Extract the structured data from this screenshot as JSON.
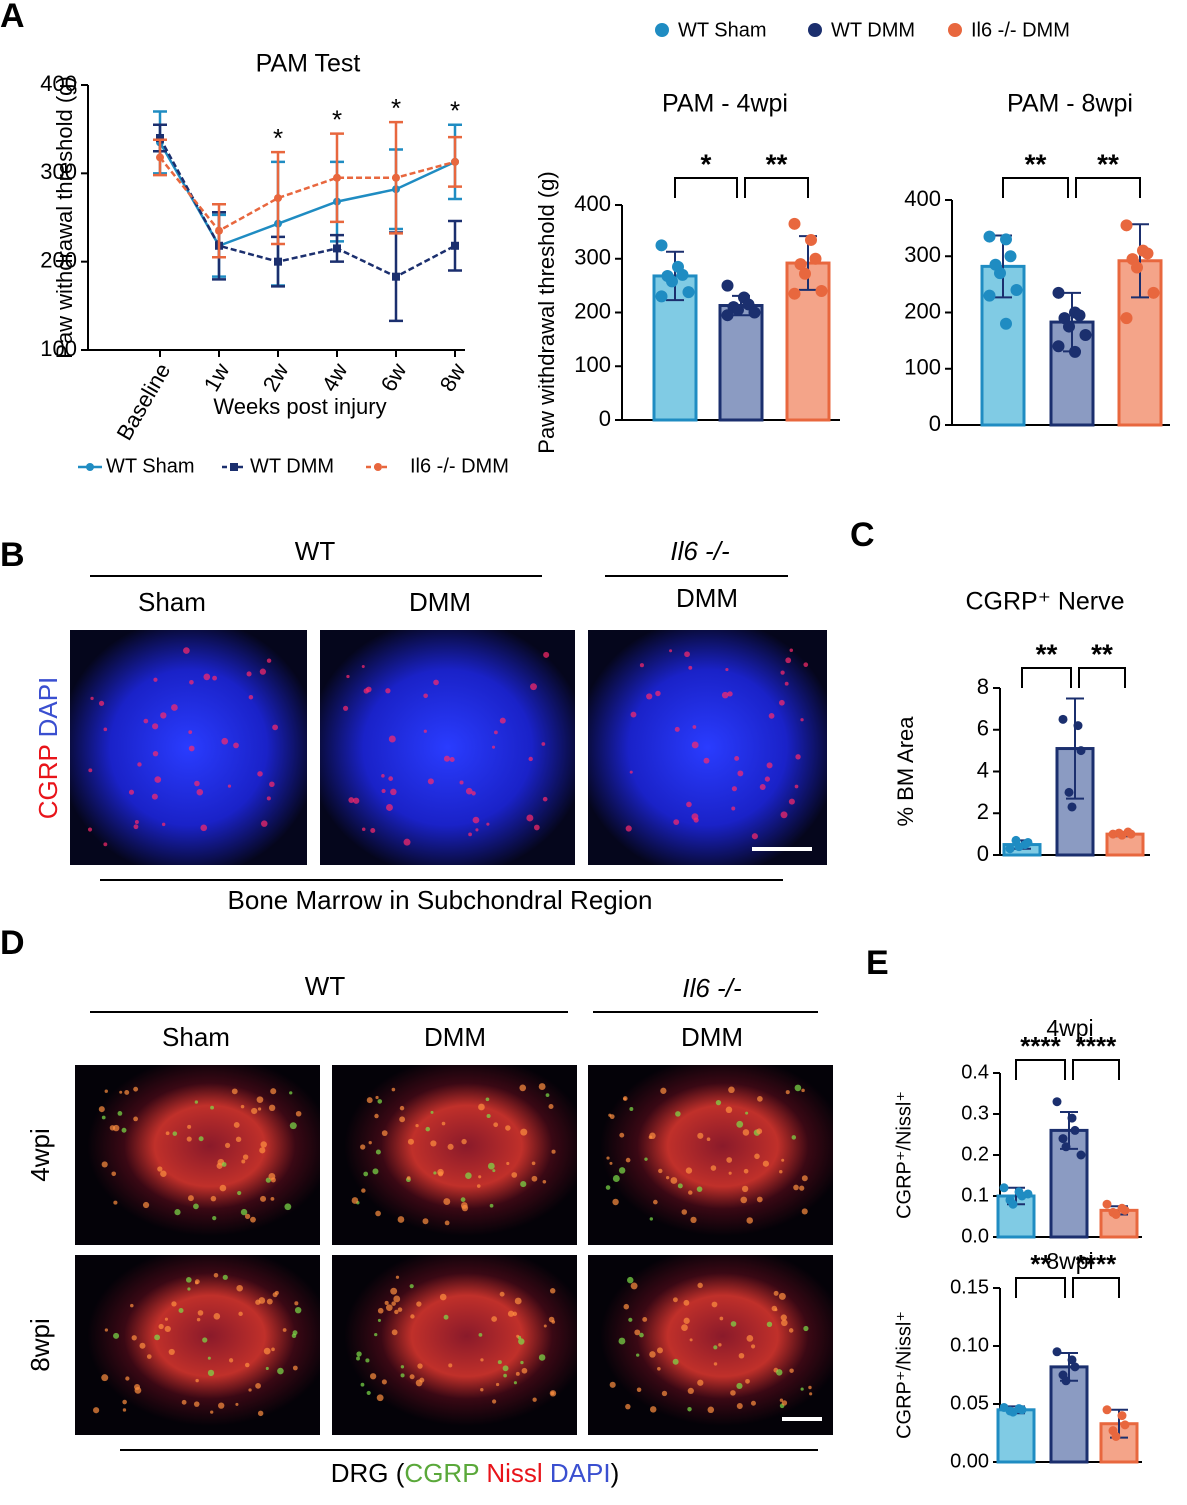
{
  "panels": {
    "A": "A",
    "B": "B",
    "C": "C",
    "D": "D",
    "E": "E",
    "b_wt": "WT",
    "b_ko": "Il6 -/-",
    "b_sham": "Sham",
    "b_dmm": "DMM",
    "b_dmm2": "DMM",
    "b_stain_cgrp": "CGRP",
    "b_stain_dapi": "DAPI",
    "b_caption": "Bone Marrow in Subchondral Region",
    "d_wt": "WT",
    "d_ko": "Il6 -/-",
    "d_sham": "Sham",
    "d_dmm": "DMM",
    "d_dmm2": "DMM",
    "d_row1": "4wpi",
    "d_row2": "8wpi",
    "d_cap_pre": "DRG (",
    "d_cap_cgrp": "CGRP",
    "d_cap_nissl": "Nissl",
    "d_cap_dapi": "DAPI",
    "d_cap_post": ")"
  },
  "chart_data": [
    {
      "type": "line",
      "title": "PAM Test",
      "x_label": "Weeks post injury",
      "y_label": "Paw withdrawal threshold (g)",
      "categories": [
        "Baseline",
        "1w",
        "2w",
        "4w",
        "6w",
        "8w"
      ],
      "ylim": [
        100,
        400
      ],
      "yticks": [
        100,
        200,
        300,
        400
      ],
      "series": [
        {
          "name": "WT Sham",
          "color": "#1f8cc2",
          "line_style": "solid",
          "values": [
            335,
            218,
            243,
            268,
            282,
            313
          ],
          "errors": [
            35,
            35,
            70,
            45,
            45,
            42
          ]
        },
        {
          "name": "WT DMM",
          "color": "#1b2f6e",
          "line_style": "dashed",
          "values": [
            340,
            218,
            200,
            215,
            183,
            218
          ],
          "errors": [
            15,
            38,
            28,
            15,
            50,
            28
          ]
        },
        {
          "name": "Il6 -/- DMM",
          "color": "#e8673e",
          "line_style": "dashed",
          "values": [
            318,
            235,
            272,
            295,
            295,
            313
          ],
          "errors": [
            20,
            30,
            52,
            50,
            63,
            28
          ]
        }
      ],
      "annotations": [
        {
          "category": "2w",
          "text": "*"
        },
        {
          "category": "4w",
          "text": "*"
        },
        {
          "category": "6w",
          "text": "*"
        },
        {
          "category": "8w",
          "text": "*"
        }
      ]
    },
    {
      "type": "bar",
      "title": "PAM - 4wpi",
      "y_label": "Paw withdrawal threshold (g)",
      "categories": [
        "WT Sham",
        "WT DMM",
        "Il6 -/- DMM"
      ],
      "colors": [
        "#80cbe4",
        "#8b9bc2",
        "#f4a489"
      ],
      "edge_colors": [
        "#1f8cc2",
        "#1b2f6e",
        "#e8673e"
      ],
      "ylim": [
        0,
        400
      ],
      "yticks": [
        0,
        100,
        200,
        300,
        400
      ],
      "values": [
        268,
        213,
        292
      ],
      "errors": [
        45,
        18,
        50
      ],
      "points": [
        [
          325,
          285,
          270,
          268,
          258,
          238,
          230
        ],
        [
          250,
          228,
          215,
          210,
          205,
          200,
          195
        ],
        [
          365,
          335,
          300,
          290,
          272,
          240,
          235
        ]
      ],
      "comparisons": [
        {
          "from": 0,
          "to": 1,
          "label": "*"
        },
        {
          "from": 1,
          "to": 2,
          "label": "**"
        }
      ]
    },
    {
      "type": "bar",
      "title": "PAM - 8wpi",
      "categories": [
        null,
        null,
        null
      ],
      "colors": [
        "#80cbe4",
        "#8b9bc2",
        "#f4a489"
      ],
      "edge_colors": [
        "#1f8cc2",
        "#1b2f6e",
        "#e8673e"
      ],
      "ylim": [
        0,
        400
      ],
      "yticks": [
        0,
        100,
        200,
        300,
        400
      ],
      "values": [
        282,
        183,
        292
      ],
      "errors": [
        55,
        52,
        65
      ],
      "points": [
        [
          335,
          330,
          300,
          285,
          270,
          240,
          230,
          180
        ],
        [
          235,
          200,
          195,
          190,
          175,
          160,
          140,
          130
        ],
        [
          355,
          310,
          305,
          295,
          280,
          235,
          190
        ]
      ],
      "comparisons": [
        {
          "from": 0,
          "to": 1,
          "label": "**"
        },
        {
          "from": 1,
          "to": 2,
          "label": "**"
        }
      ]
    },
    {
      "type": "bar",
      "title": "CGRP⁺ Nerve",
      "y_label": "% BM Area",
      "categories": [
        null,
        null,
        null
      ],
      "colors": [
        "#80cbe4",
        "#8b9bc2",
        "#f4a489"
      ],
      "edge_colors": [
        "#1f8cc2",
        "#1b2f6e",
        "#e8673e"
      ],
      "ylim": [
        0,
        8
      ],
      "yticks": [
        0,
        2,
        4,
        6,
        8
      ],
      "values": [
        0.5,
        5.1,
        1.0
      ],
      "errors": [
        0.2,
        2.4,
        0.1
      ],
      "points": [
        [
          0.3,
          0.5,
          0.6,
          0.7,
          0.4
        ],
        [
          6.5,
          6.2,
          5.0,
          3.0,
          2.3
        ],
        [
          1.0,
          1.1,
          1.0,
          1.05,
          0.95
        ]
      ],
      "comparisons": [
        {
          "from": 0,
          "to": 1,
          "label": "**"
        },
        {
          "from": 1,
          "to": 2,
          "label": "**"
        }
      ]
    },
    {
      "type": "bar",
      "title": "4wpi",
      "y_label": "CGRP⁺/Nissl⁺",
      "categories": [
        null,
        null,
        null
      ],
      "colors": [
        "#80cbe4",
        "#8b9bc2",
        "#f4a489"
      ],
      "edge_colors": [
        "#1f8cc2",
        "#1b2f6e",
        "#e8673e"
      ],
      "ylim": [
        0,
        0.4
      ],
      "yticks": [
        {
          "value": 0,
          "label": "0.0"
        },
        0.1,
        0.2,
        0.3,
        0.4
      ],
      "values": [
        0.1,
        0.26,
        0.065
      ],
      "errors": [
        0.02,
        0.045,
        0.01
      ],
      "points": [
        [
          0.12,
          0.11,
          0.1,
          0.09,
          0.08,
          0.105
        ],
        [
          0.33,
          0.29,
          0.26,
          0.24,
          0.22,
          0.2
        ],
        [
          0.08,
          0.07,
          0.065,
          0.06,
          0.055
        ]
      ],
      "comparisons": [
        {
          "from": 0,
          "to": 1,
          "label": "****"
        },
        {
          "from": 1,
          "to": 2,
          "label": "****"
        }
      ]
    },
    {
      "type": "bar",
      "title": "8wpi",
      "y_label": "CGRP⁺/Nissl⁺",
      "categories": [
        null,
        null,
        null
      ],
      "colors": [
        "#80cbe4",
        "#8b9bc2",
        "#f4a489"
      ],
      "edge_colors": [
        "#1f8cc2",
        "#1b2f6e",
        "#e8673e"
      ],
      "ylim": [
        0,
        0.15
      ],
      "yticks": [
        {
          "value": 0,
          "label": "0.00"
        },
        {
          "value": 0.05,
          "label": "0.05"
        },
        {
          "value": 0.1,
          "label": "0.10"
        },
        {
          "value": 0.15,
          "label": "0.15"
        }
      ],
      "values": [
        0.045,
        0.082,
        0.033
      ],
      "errors": [
        0.003,
        0.012,
        0.012
      ],
      "points": [
        [
          0.047,
          0.046,
          0.045,
          0.044,
          0.043
        ],
        [
          0.095,
          0.088,
          0.082,
          0.075,
          0.07
        ],
        [
          0.045,
          0.04,
          0.032,
          0.027,
          0.022
        ]
      ],
      "comparisons": [
        {
          "from": 0,
          "to": 1,
          "label": "**"
        },
        {
          "from": 1,
          "to": 2,
          "label": "****"
        }
      ]
    }
  ]
}
